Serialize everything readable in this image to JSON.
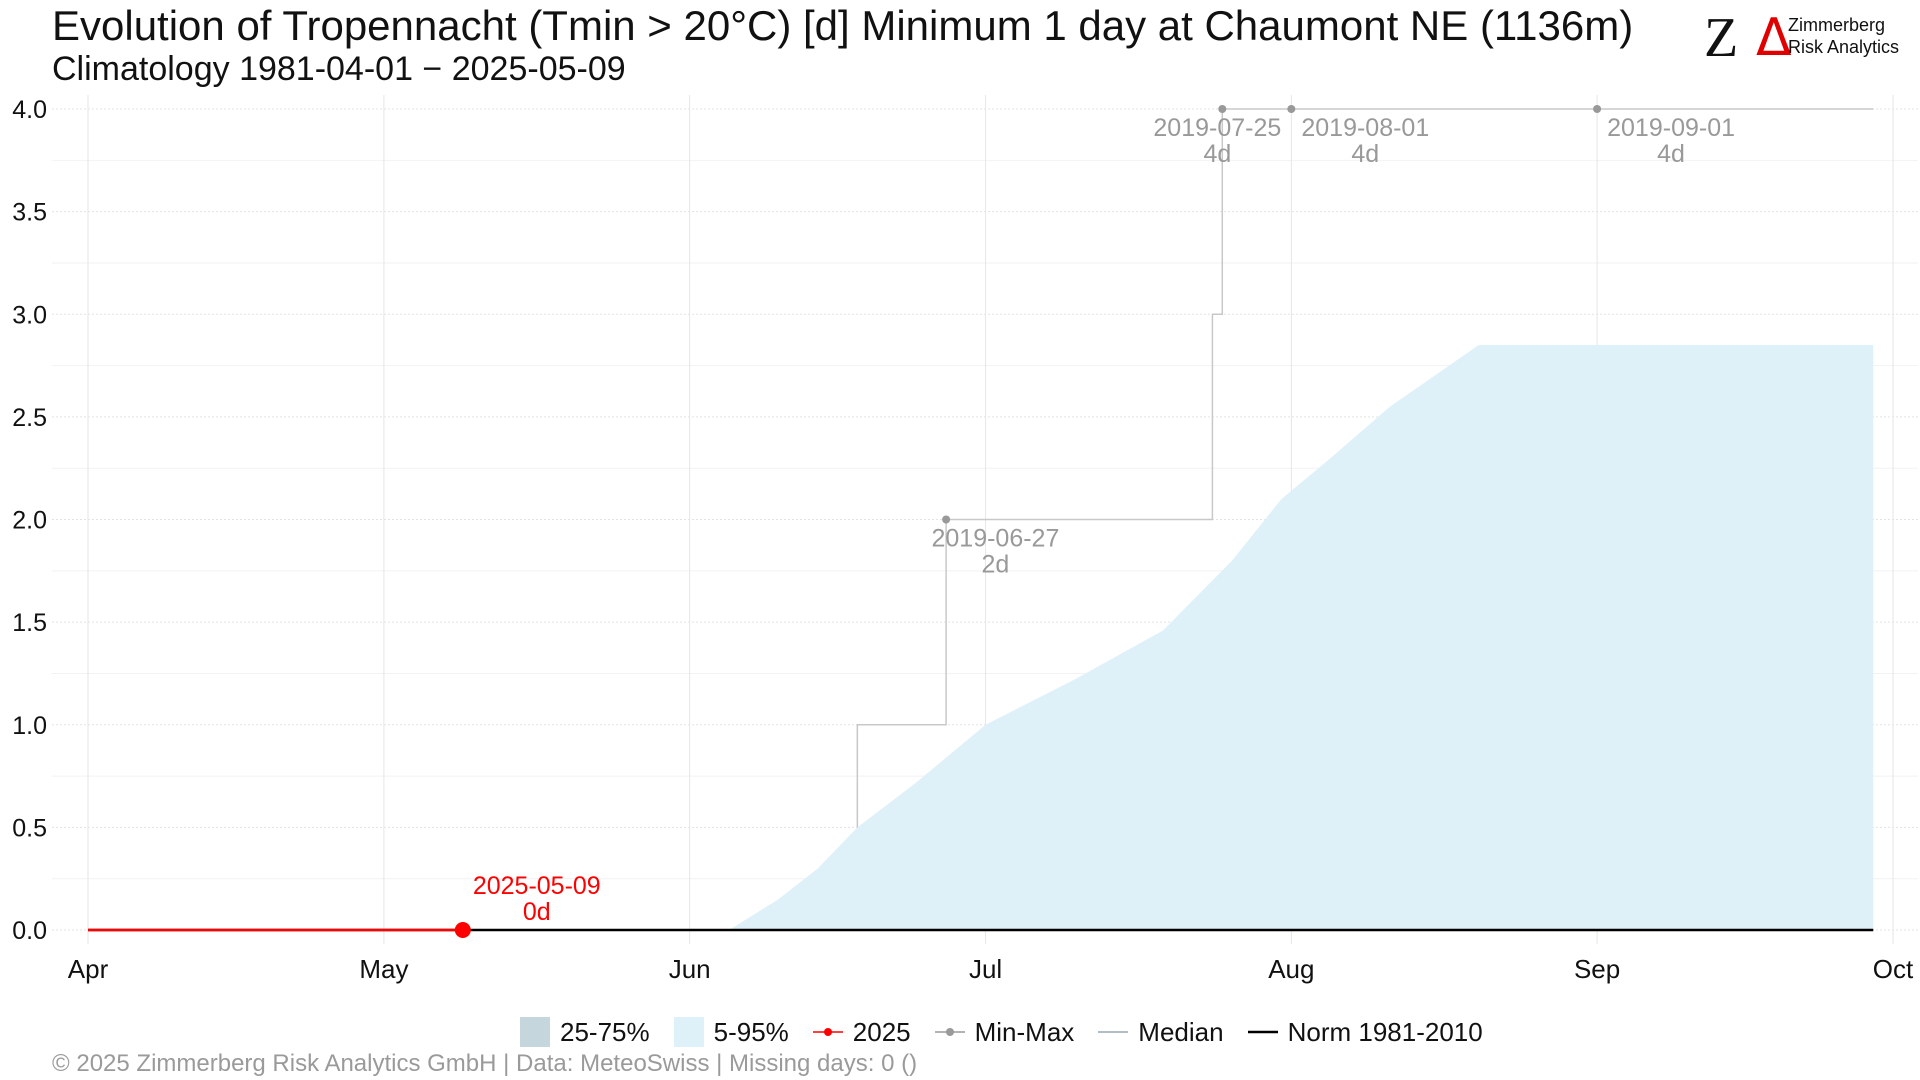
{
  "header": {
    "title": "Evolution of Tropennacht (Tmin > 20°C) [d] Minimum 1 day at Chaumont  NE (1136m)",
    "subtitle": "Climatology 1981-04-01 − 2025-05-09"
  },
  "logo": {
    "mark": "Z",
    "delta": "Δ",
    "line1": "Zimmerberg",
    "line2": "Risk Analytics"
  },
  "legend": {
    "items": [
      {
        "label": "25-75%",
        "kind": "box",
        "color": "#c5d6dc"
      },
      {
        "label": "5-95%",
        "kind": "box",
        "color": "#dff1f8"
      },
      {
        "label": "2025",
        "kind": "line-dot",
        "color": "#ff0000"
      },
      {
        "label": "Min-Max",
        "kind": "line-dot",
        "color": "#9a9a9a"
      },
      {
        "label": "Median",
        "kind": "line",
        "color": "#9aa7b0"
      },
      {
        "label": "Norm 1981-2010",
        "kind": "line",
        "color": "#000000"
      }
    ]
  },
  "footer": {
    "text": "©  2025 Zimmerberg Risk Analytics GmbH | Data: MeteoSwiss | Missing days: 0 ()"
  },
  "chart_data": {
    "type": "area",
    "x_axis": {
      "min": "2025-04-01",
      "max": "2025-10-01",
      "ticks": [
        {
          "date": "2025-04-01",
          "label": "Apr"
        },
        {
          "date": "2025-05-01",
          "label": "May"
        },
        {
          "date": "2025-06-01",
          "label": "Jun"
        },
        {
          "date": "2025-07-01",
          "label": "Jul"
        },
        {
          "date": "2025-08-01",
          "label": "Aug"
        },
        {
          "date": "2025-09-01",
          "label": "Sep"
        },
        {
          "date": "2025-10-01",
          "label": "Oct"
        }
      ]
    },
    "y_axis": {
      "min": 0,
      "max": 4,
      "ticks": [
        {
          "value": 0,
          "label": "0.0"
        },
        {
          "value": 0.5,
          "label": "0.5"
        },
        {
          "value": 1,
          "label": "1.0"
        },
        {
          "value": 1.5,
          "label": "1.5"
        },
        {
          "value": 2,
          "label": "2.0"
        },
        {
          "value": 2.5,
          "label": "2.5"
        },
        {
          "value": 3,
          "label": "3.0"
        },
        {
          "value": 3.5,
          "label": "3.5"
        },
        {
          "value": 4,
          "label": "4.0"
        }
      ]
    },
    "grid": true,
    "legend_position": "bottom",
    "series": [
      {
        "name": "5-95%",
        "kind": "band",
        "color": "#dff1f8",
        "points": [
          {
            "x": "2025-06-05",
            "lower": 0,
            "upper": 0.0
          },
          {
            "x": "2025-06-10",
            "lower": 0,
            "upper": 0.15
          },
          {
            "x": "2025-06-14",
            "lower": 0,
            "upper": 0.3
          },
          {
            "x": "2025-06-18",
            "lower": 0,
            "upper": 0.5
          },
          {
            "x": "2025-06-24",
            "lower": 0,
            "upper": 0.72
          },
          {
            "x": "2025-07-01",
            "lower": 0,
            "upper": 1.0
          },
          {
            "x": "2025-07-10",
            "lower": 0,
            "upper": 1.22
          },
          {
            "x": "2025-07-19",
            "lower": 0,
            "upper": 1.46
          },
          {
            "x": "2025-07-26",
            "lower": 0,
            "upper": 1.8
          },
          {
            "x": "2025-07-31",
            "lower": 0,
            "upper": 2.1
          },
          {
            "x": "2025-08-05",
            "lower": 0,
            "upper": 2.3
          },
          {
            "x": "2025-08-11",
            "lower": 0,
            "upper": 2.55
          },
          {
            "x": "2025-08-20",
            "lower": 0,
            "upper": 2.85
          },
          {
            "x": "2025-09-29",
            "lower": 0,
            "upper": 2.85
          }
        ]
      },
      {
        "name": "Min-Max",
        "kind": "step",
        "color": "#c8c8c8",
        "points": [
          {
            "x": "2025-06-18",
            "y": 0.5
          },
          {
            "x": "2025-06-18",
            "y": 1.0
          },
          {
            "x": "2025-06-27",
            "y": 1.0
          },
          {
            "x": "2025-06-27",
            "y": 2.0
          },
          {
            "x": "2025-07-24",
            "y": 2.0
          },
          {
            "x": "2025-07-24",
            "y": 3.0
          },
          {
            "x": "2025-07-25",
            "y": 3.0
          },
          {
            "x": "2025-07-25",
            "y": 4.0
          },
          {
            "x": "2025-09-29",
            "y": 4.0
          }
        ]
      },
      {
        "name": "Norm 1981-2010",
        "kind": "line",
        "color": "#000000",
        "points": [
          {
            "x": "2025-04-01",
            "y": 0
          },
          {
            "x": "2025-09-29",
            "y": 0
          }
        ]
      },
      {
        "name": "2025",
        "kind": "line",
        "color": "#ff0000",
        "points": [
          {
            "x": "2025-04-01",
            "y": 0
          },
          {
            "x": "2025-05-09",
            "y": 0
          }
        ]
      }
    ],
    "annotations": [
      {
        "x": "2025-05-09",
        "y": 0,
        "date_label": "2025-05-09",
        "value_label": "0d",
        "color": "#ff0000",
        "marker": "large",
        "text_dx_days": 7.5
      },
      {
        "x": "2025-06-27",
        "y": 2,
        "date_label": "2019-06-27",
        "value_label": "2d",
        "color": "#999999",
        "marker": "small",
        "text_dx_days": 5
      },
      {
        "x": "2025-07-25",
        "y": 4,
        "date_label": "2019-07-25",
        "value_label": "4d",
        "color": "#999999",
        "marker": "small",
        "text_dx_days": -0.5
      },
      {
        "x": "2025-08-01",
        "y": 4,
        "date_label": "2019-08-01",
        "value_label": "4d",
        "color": "#999999",
        "marker": "small",
        "text_dx_days": 7.5
      },
      {
        "x": "2025-09-01",
        "y": 4,
        "date_label": "2019-09-01",
        "value_label": "4d",
        "color": "#999999",
        "marker": "small",
        "text_dx_days": 7.5
      }
    ]
  }
}
